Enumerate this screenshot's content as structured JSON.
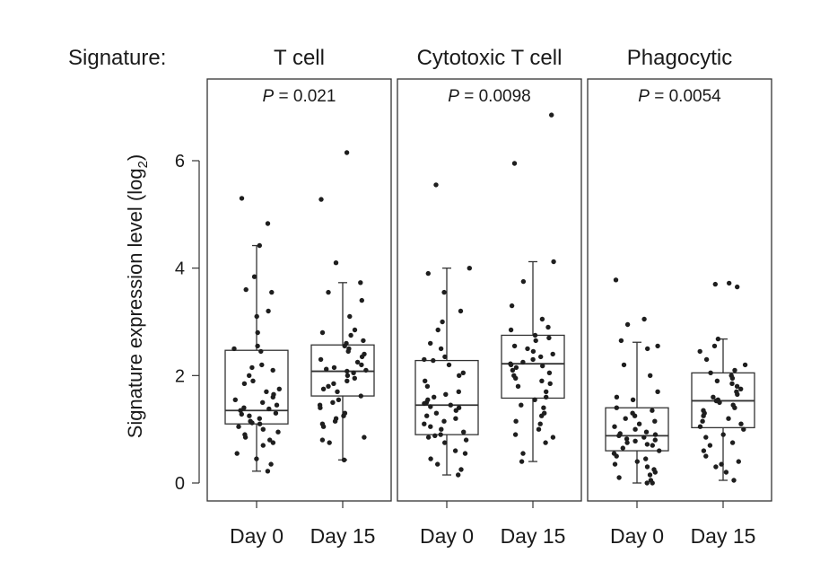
{
  "chart_data": {
    "type": "boxplot",
    "signature_label": "Signature:",
    "ylabel": "Signature expression level (log",
    "ylabel_sub": "2",
    "ylabel_close": ")",
    "ylim": [
      -0.2,
      7.5
    ],
    "yticks": [
      0,
      2,
      4,
      6
    ],
    "ytick_labels": [
      "0",
      "2",
      "4",
      "6"
    ],
    "categories": [
      "Day 0",
      "Day 15"
    ],
    "panels": [
      {
        "title": "T cell",
        "p_label": "P",
        "p_value": " = 0.021",
        "boxes": [
          {
            "category": "Day 0",
            "min": 0.22,
            "q1": 1.1,
            "median": 1.35,
            "q3": 2.47,
            "max": 4.42,
            "points": [
              5.3,
              4.83,
              4.42,
              3.84,
              3.6,
              3.55,
              3.2,
              3.1,
              2.8,
              2.55,
              2.5,
              2.45,
              2.2,
              2.15,
              2.1,
              2.0,
              1.9,
              1.85,
              1.75,
              1.7,
              1.65,
              1.6,
              1.55,
              1.5,
              1.45,
              1.4,
              1.38,
              1.35,
              1.3,
              1.28,
              1.25,
              1.2,
              1.15,
              1.12,
              1.1,
              1.05,
              1.0,
              0.95,
              0.9,
              0.85,
              0.8,
              0.75,
              0.7,
              0.55,
              0.45,
              0.35,
              0.22
            ]
          },
          {
            "category": "Day 15",
            "min": 0.43,
            "q1": 1.62,
            "median": 2.08,
            "q3": 2.57,
            "max": 3.73,
            "points": [
              6.15,
              5.28,
              4.1,
              3.73,
              3.55,
              3.4,
              3.1,
              2.85,
              2.8,
              2.75,
              2.65,
              2.6,
              2.55,
              2.5,
              2.45,
              2.4,
              2.35,
              2.3,
              2.25,
              2.2,
              2.15,
              2.12,
              2.1,
              2.08,
              2.05,
              2.0,
              1.95,
              1.9,
              1.85,
              1.8,
              1.75,
              1.7,
              1.62,
              1.55,
              1.5,
              1.45,
              1.4,
              1.3,
              1.25,
              1.2,
              1.15,
              1.1,
              1.05,
              0.85,
              0.8,
              0.75,
              0.43
            ]
          }
        ]
      },
      {
        "title": "Cytotoxic T cell",
        "p_label": "P",
        "p_value": " = 0.0098",
        "boxes": [
          {
            "category": "Day 0",
            "min": 0.15,
            "q1": 0.9,
            "median": 1.45,
            "q3": 2.28,
            "max": 4.0,
            "points": [
              5.55,
              4.0,
              3.9,
              3.55,
              3.2,
              3.0,
              2.85,
              2.6,
              2.5,
              2.35,
              2.3,
              2.28,
              2.2,
              2.05,
              2.0,
              1.9,
              1.8,
              1.7,
              1.65,
              1.6,
              1.55,
              1.5,
              1.48,
              1.45,
              1.42,
              1.4,
              1.35,
              1.3,
              1.25,
              1.2,
              1.15,
              1.1,
              1.05,
              1.0,
              0.95,
              0.9,
              0.88,
              0.85,
              0.8,
              0.75,
              0.6,
              0.55,
              0.45,
              0.35,
              0.25,
              0.15
            ]
          },
          {
            "category": "Day 15",
            "min": 0.4,
            "q1": 1.58,
            "median": 2.22,
            "q3": 2.75,
            "max": 4.12,
            "points": [
              6.85,
              5.95,
              4.12,
              3.75,
              3.3,
              3.05,
              2.9,
              2.85,
              2.75,
              2.7,
              2.65,
              2.55,
              2.5,
              2.45,
              2.4,
              2.35,
              2.3,
              2.25,
              2.22,
              2.2,
              2.18,
              2.15,
              2.1,
              2.05,
              2.0,
              1.95,
              1.9,
              1.85,
              1.8,
              1.7,
              1.6,
              1.55,
              1.45,
              1.4,
              1.3,
              1.25,
              1.15,
              1.1,
              1.0,
              0.9,
              0.85,
              0.75,
              0.55,
              0.4
            ]
          }
        ]
      },
      {
        "title": "Phagocytic",
        "p_label": "P",
        "p_value": " = 0.0054",
        "boxes": [
          {
            "category": "Day 0",
            "min": 0.0,
            "q1": 0.6,
            "median": 0.88,
            "q3": 1.4,
            "max": 2.62,
            "points": [
              3.78,
              3.05,
              2.95,
              2.65,
              2.55,
              2.5,
              2.2,
              2.0,
              1.7,
              1.6,
              1.55,
              1.4,
              1.35,
              1.3,
              1.25,
              1.2,
              1.15,
              1.1,
              1.05,
              1.0,
              0.95,
              0.92,
              0.9,
              0.88,
              0.85,
              0.82,
              0.8,
              0.78,
              0.75,
              0.72,
              0.7,
              0.65,
              0.6,
              0.55,
              0.5,
              0.45,
              0.4,
              0.35,
              0.3,
              0.25,
              0.2,
              0.15,
              0.1,
              0.05,
              0.0,
              0.0
            ]
          },
          {
            "category": "Day 15",
            "min": 0.05,
            "q1": 1.03,
            "median": 1.53,
            "q3": 2.05,
            "max": 2.68,
            "points": [
              3.72,
              3.7,
              3.65,
              2.68,
              2.55,
              2.45,
              2.3,
              2.2,
              2.1,
              2.05,
              2.0,
              1.95,
              1.9,
              1.85,
              1.8,
              1.75,
              1.7,
              1.65,
              1.6,
              1.55,
              1.53,
              1.5,
              1.45,
              1.4,
              1.35,
              1.3,
              1.25,
              1.2,
              1.15,
              1.1,
              1.05,
              1.0,
              0.9,
              0.85,
              0.75,
              0.7,
              0.6,
              0.5,
              0.4,
              0.35,
              0.3,
              0.2,
              0.05
            ]
          }
        ]
      }
    ]
  }
}
